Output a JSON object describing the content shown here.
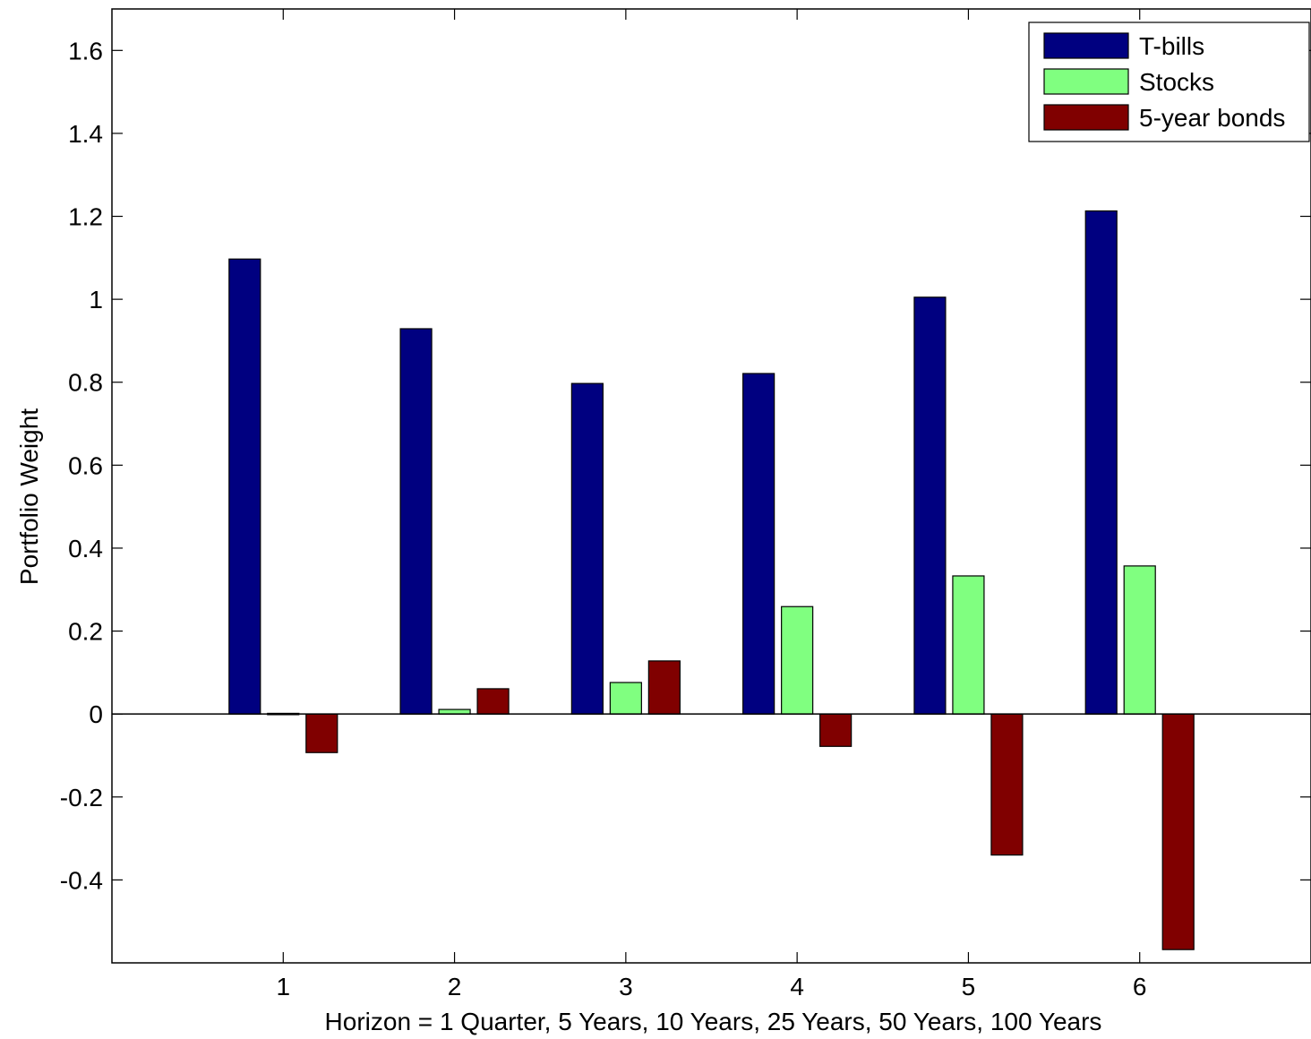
{
  "chart_data": {
    "type": "bar",
    "categories": [
      "1",
      "2",
      "3",
      "4",
      "5",
      "6"
    ],
    "series": [
      {
        "name": "T-bills",
        "color": "#000080",
        "values": [
          1.097,
          0.929,
          0.797,
          0.821,
          1.005,
          1.213
        ]
      },
      {
        "name": "Stocks",
        "color": "#80ff80",
        "values": [
          -0.002,
          0.011,
          0.076,
          0.259,
          0.333,
          0.357
        ]
      },
      {
        "name": "5-year bonds",
        "color": "#800000",
        "values": [
          -0.093,
          0.061,
          0.128,
          -0.078,
          -0.34,
          -0.568
        ]
      }
    ],
    "xlabel": "Horizon = 1 Quarter, 5 Years, 10 Years, 25 Years, 50 Years, 100 Years",
    "ylabel": "Portfolio Weight",
    "ylim": [
      -0.6,
      1.7
    ],
    "xlim": [
      0,
      7
    ],
    "yticks": [
      "-0.4",
      "-0.2",
      "0",
      "0.2",
      "0.4",
      "0.6",
      "0.8",
      "1",
      "1.2",
      "1.4",
      "1.6"
    ],
    "xticks": [
      "1",
      "2",
      "3",
      "4",
      "5",
      "6"
    ],
    "grid": false,
    "legend_position": "top-right"
  }
}
